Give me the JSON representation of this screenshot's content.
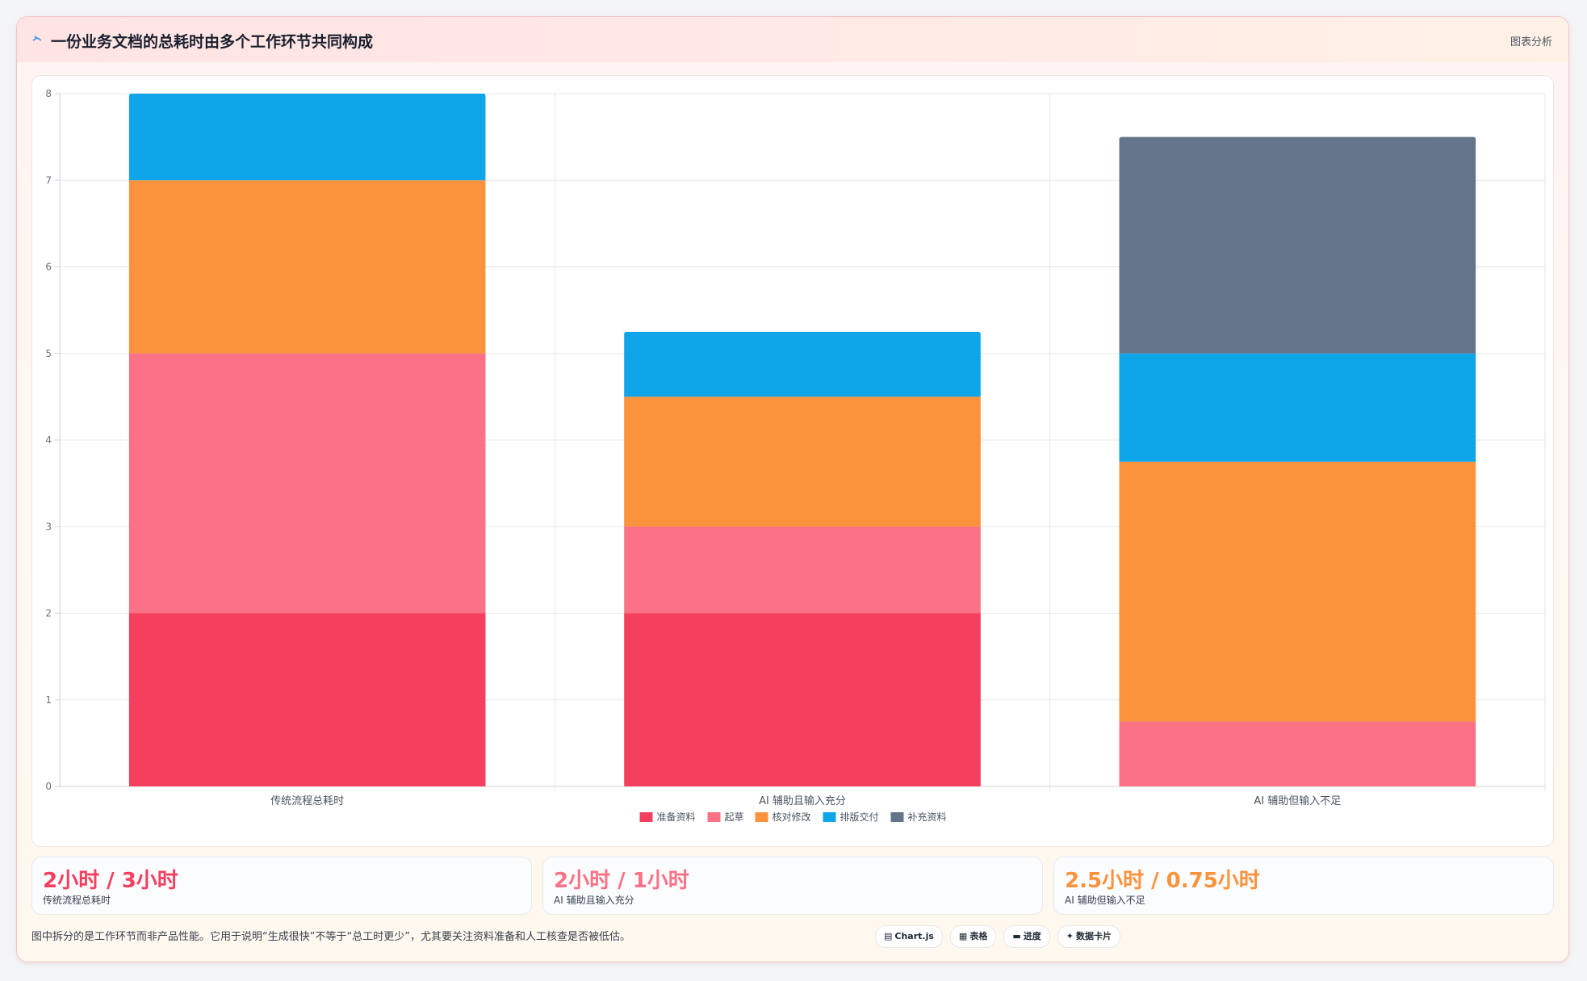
{
  "header": {
    "title": "一份业务文档的总耗时由多个工作环节共同构成",
    "tag": "图表分析",
    "icon": "sparkle-icon"
  },
  "colors": {
    "prep": "#f43f5e",
    "draft": "#fb7185",
    "review": "#fb923c",
    "layout": "#0ea5e9",
    "supplement": "#64748b",
    "accent_red": "#f43f5e",
    "accent_pink": "#fb7185",
    "accent_orange": "#fb923c"
  },
  "chart_data": {
    "type": "bar",
    "stacked": true,
    "categories": [
      "传统流程总耗时",
      "AI 辅助且输入充分",
      "AI 辅助但输入不足"
    ],
    "series": [
      {
        "name": "准备资料",
        "color": "#f43f5e",
        "values": [
          2,
          2,
          0
        ]
      },
      {
        "name": "起草",
        "color": "#fb7185",
        "values": [
          3,
          1,
          0.75
        ]
      },
      {
        "name": "核对修改",
        "color": "#fb923c",
        "values": [
          2,
          1.5,
          3
        ]
      },
      {
        "name": "排版交付",
        "color": "#0ea5e9",
        "values": [
          1,
          0.75,
          1.25
        ]
      },
      {
        "name": "补充资料",
        "color": "#64748b",
        "values": [
          0,
          0,
          2.5
        ]
      }
    ],
    "ylim": [
      0,
      8
    ],
    "yticks": [
      0,
      1,
      2,
      3,
      4,
      5,
      6,
      7,
      8
    ],
    "grid": true,
    "legend": "bottom"
  },
  "stats": [
    {
      "value": "2小时 / 3小时",
      "label": "传统流程总耗时",
      "color": "#f43f5e"
    },
    {
      "value": "2小时 / 1小时",
      "label": "AI 辅助且输入充分",
      "color": "#fb7185"
    },
    {
      "value": "2.5小时 / 0.75小时",
      "label": "AI 辅助但输入不足",
      "color": "#fb923c"
    }
  ],
  "footnote": "图中拆分的是工作环节而非产品性能。它用于说明“生成很快”不等于“总工时更少”，尤其要关注资料准备和人工核查是否被低估。",
  "chips": [
    {
      "icon": "▤",
      "label": "Chart.js",
      "name": "chip-chartjs"
    },
    {
      "icon": "▦",
      "label": "表格",
      "name": "chip-table"
    },
    {
      "icon": "▬",
      "label": "进度",
      "name": "chip-progress"
    },
    {
      "icon": "✦",
      "label": "数据卡片",
      "name": "chip-data-card"
    }
  ]
}
